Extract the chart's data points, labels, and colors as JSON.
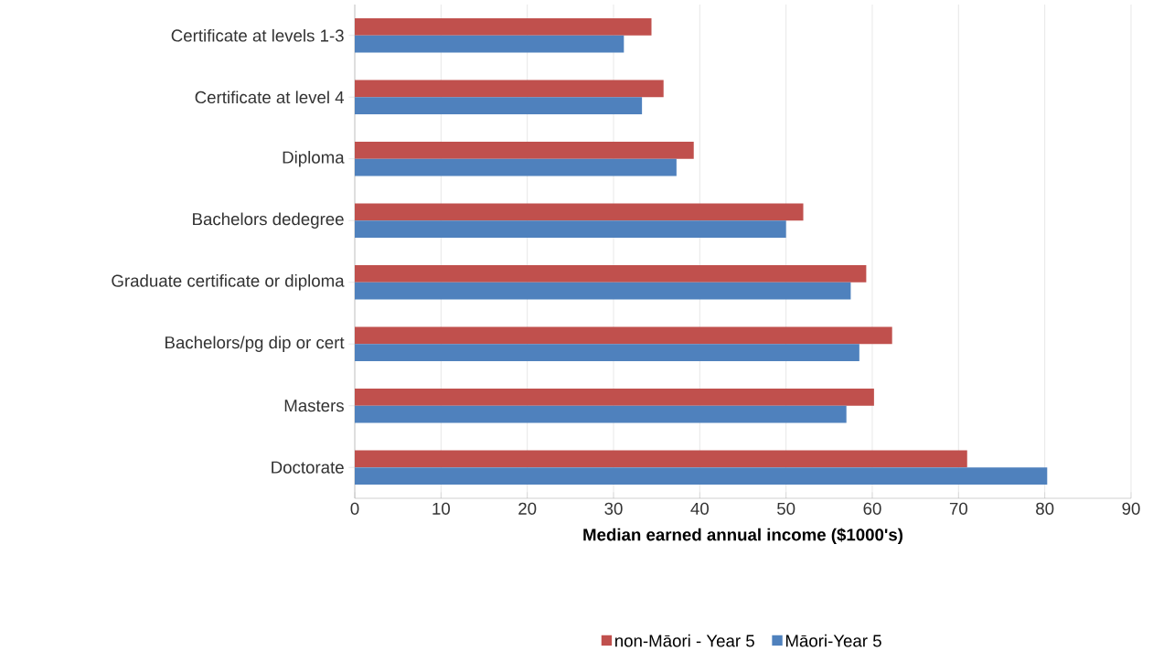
{
  "chart_data": {
    "type": "bar",
    "orientation": "horizontal",
    "categories": [
      "Certificate at levels 1-3",
      "Certificate at level 4",
      "Diploma",
      "Bachelors dedegree",
      "Graduate certificate or diploma",
      "Bachelors/pg dip or cert",
      "Masters",
      "Doctorate"
    ],
    "series": [
      {
        "name": "non-Māori - Year 5",
        "color": "#c0504d",
        "values": [
          34.4,
          35.8,
          39.3,
          52.0,
          59.3,
          62.3,
          60.2,
          71.0
        ]
      },
      {
        "name": "Māori-Year 5",
        "color": "#4f81bd",
        "values": [
          31.2,
          33.3,
          37.3,
          50.0,
          57.5,
          58.5,
          57.0,
          80.3
        ]
      }
    ],
    "xlabel": "Median earned annual income ($1000's)",
    "xlim": [
      0,
      90
    ],
    "xticks": [
      0,
      10,
      20,
      30,
      40,
      50,
      60,
      70,
      80,
      90
    ],
    "grid": "x",
    "legend": "bottom"
  }
}
